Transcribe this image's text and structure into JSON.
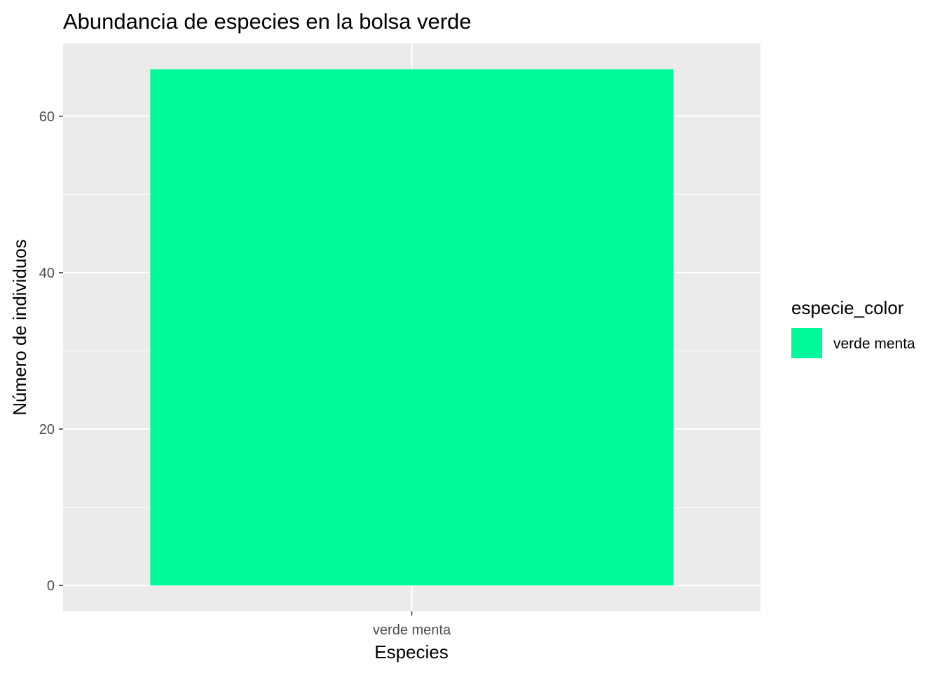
{
  "chart_data": {
    "type": "bar",
    "title": "Abundancia de especies en la bolsa verde",
    "xlabel": "Especies",
    "ylabel": "Número de individuos",
    "categories": [
      "verde menta"
    ],
    "values": [
      66
    ],
    "ylim": [
      -3.3,
      69.3
    ],
    "yticks": [
      0,
      20,
      40,
      60
    ],
    "grid": true,
    "bar_color": "#00FA9A",
    "panel_background": "#EBEBEB",
    "legend": {
      "title": "especie_color",
      "position": "right",
      "items": [
        {
          "label": "verde menta",
          "color": "#00FA9A"
        }
      ]
    }
  }
}
